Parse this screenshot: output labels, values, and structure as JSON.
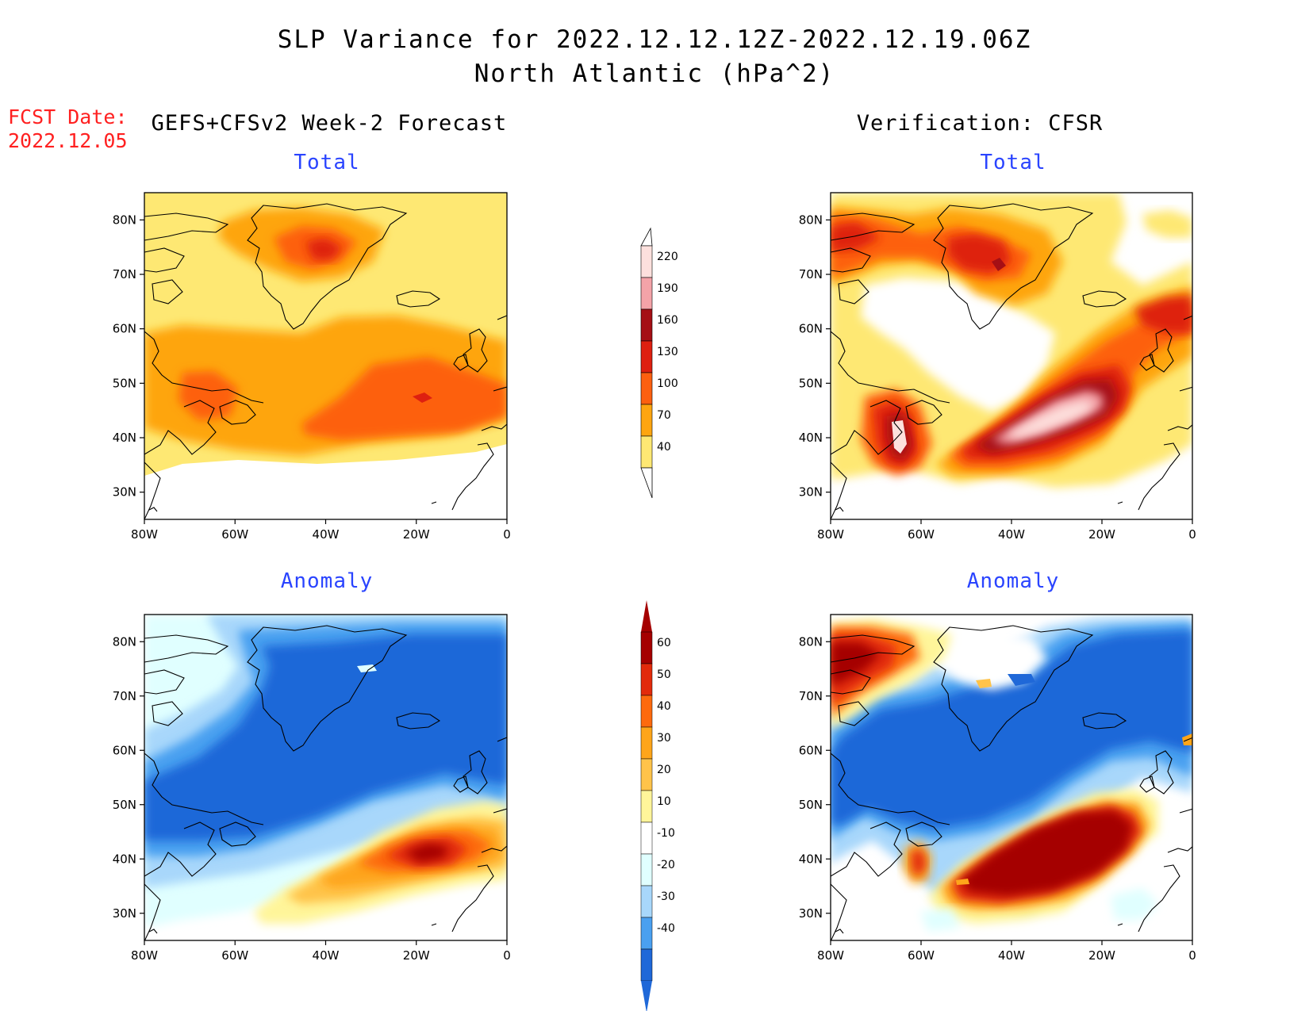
{
  "title_line1": "SLP Variance for 2022.12.12.12Z-2022.12.19.06Z",
  "title_line2": "North Atlantic (hPa^2)",
  "fcst_label": "FCST Date:",
  "fcst_date": "2022.12.05",
  "left_header": "GEFS+CFSv2 Week-2 Forecast",
  "right_header": "Verification: CFSR",
  "panels": {
    "fc_total": {
      "title": "Total"
    },
    "ver_total": {
      "title": "Total"
    },
    "fc_anom": {
      "title": "Anomaly"
    },
    "ver_anom": {
      "title": "Anomaly"
    }
  },
  "axes": {
    "lon_labels": [
      "80W",
      "60W",
      "40W",
      "20W",
      "0"
    ],
    "lat_labels": [
      "80N",
      "70N",
      "60N",
      "50N",
      "40N",
      "30N"
    ],
    "lon_values": [
      -80,
      -60,
      -40,
      -20,
      0
    ],
    "lat_values": [
      80,
      70,
      60,
      50,
      40,
      30
    ],
    "lon_range": [
      -80,
      0
    ],
    "lat_range": [
      25,
      85
    ]
  },
  "colorbar_total": {
    "labels": [
      "220",
      "190",
      "160",
      "130",
      "100",
      "70",
      "40"
    ],
    "colors": [
      "#fde0dd",
      "#f4a3a8",
      "#a50f15",
      "#de2010",
      "#fd6010",
      "#fea510",
      "#fee873"
    ]
  },
  "colorbar_anom": {
    "labels": [
      "60",
      "50",
      "40",
      "30",
      "20",
      "10",
      "-10",
      "-20",
      "-30",
      "-40"
    ],
    "colors": [
      "#a50000",
      "#e22a0b",
      "#fd6a0e",
      "#fea51a",
      "#ffc34a",
      "#fff59a",
      "#ffffff",
      "#e0ffff",
      "#a8d7fb",
      "#4aa0f0",
      "#1f68d8"
    ]
  }
}
